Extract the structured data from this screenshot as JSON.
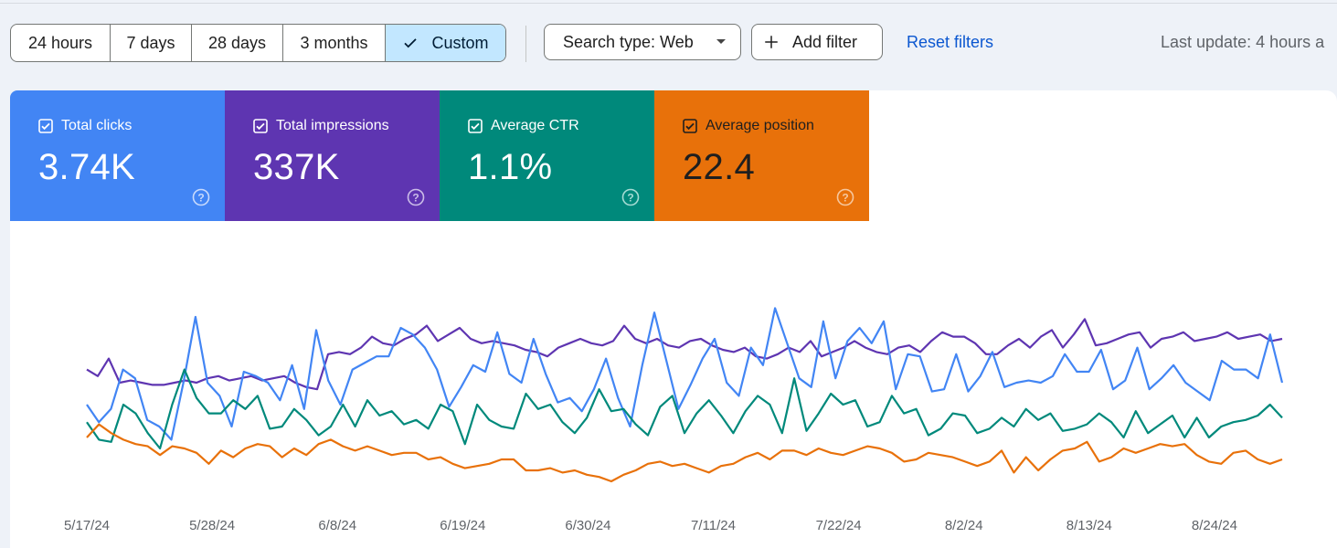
{
  "toolbar": {
    "ranges": [
      "24 hours",
      "7 days",
      "28 days",
      "3 months",
      "Custom"
    ],
    "selected_range": "Custom",
    "search_type_label": "Search type: Web",
    "add_filter_label": "Add filter",
    "reset_filters_label": "Reset filters",
    "last_update": "Last update: 4 hours a"
  },
  "metrics": [
    {
      "label": "Total clicks",
      "value": "3.74K",
      "checked": true,
      "color": "#4285f4"
    },
    {
      "label": "Total impressions",
      "value": "337K",
      "checked": true,
      "color": "#5e35b1"
    },
    {
      "label": "Average CTR",
      "value": "1.1%",
      "checked": true,
      "color": "#00897b"
    },
    {
      "label": "Average position",
      "value": "22.4",
      "checked": true,
      "color": "#e8710a"
    }
  ],
  "icons": {
    "selected": "check-icon",
    "dropdown": "caret-down-icon",
    "add": "plus-icon",
    "metric_checkbox": "checkbox-checked-icon",
    "help": "help-circle-icon"
  },
  "chart_data": {
    "type": "line",
    "x_tick_labels": [
      "5/17/24",
      "5/28/24",
      "6/8/24",
      "6/19/24",
      "6/30/24",
      "7/11/24",
      "7/22/24",
      "8/2/24",
      "8/13/24",
      "8/24/24"
    ],
    "x_start": "5/17/24",
    "x_end": "8/31/24",
    "y_axes_labeled": false,
    "series_note_relative_scale": "values are relative (0-1) because the chart prints no y-axis",
    "series": [
      {
        "metric": "Total impressions",
        "color": "#5e35b1",
        "values": [
          0.56,
          0.53,
          0.61,
          0.5,
          0.51,
          0.5,
          0.49,
          0.49,
          0.5,
          0.51,
          0.5,
          0.52,
          0.53,
          0.51,
          0.52,
          0.53,
          0.51,
          0.52,
          0.53,
          0.5,
          0.48,
          0.47,
          0.63,
          0.64,
          0.63,
          0.66,
          0.71,
          0.68,
          0.67,
          0.7,
          0.72,
          0.76,
          0.69,
          0.72,
          0.75,
          0.7,
          0.68,
          0.69,
          0.68,
          0.67,
          0.65,
          0.64,
          0.62,
          0.66,
          0.68,
          0.7,
          0.68,
          0.67,
          0.69,
          0.76,
          0.7,
          0.68,
          0.7,
          0.67,
          0.66,
          0.69,
          0.7,
          0.67,
          0.65,
          0.64,
          0.66,
          0.62,
          0.61,
          0.63,
          0.66,
          0.64,
          0.69,
          0.62,
          0.64,
          0.66,
          0.69,
          0.66,
          0.64,
          0.63,
          0.66,
          0.67,
          0.64,
          0.69,
          0.73,
          0.71,
          0.71,
          0.68,
          0.63,
          0.63,
          0.67,
          0.7,
          0.66,
          0.71,
          0.74,
          0.66,
          0.72,
          0.79,
          0.67,
          0.68,
          0.7,
          0.72,
          0.73,
          0.66,
          0.7,
          0.71,
          0.73,
          0.69,
          0.7,
          0.71,
          0.73,
          0.7,
          0.71,
          0.72,
          0.69,
          0.7
        ]
      },
      {
        "metric": "Total clicks",
        "color": "#4285f4",
        "values": [
          0.4,
          0.32,
          0.38,
          0.56,
          0.52,
          0.33,
          0.3,
          0.24,
          0.5,
          0.8,
          0.5,
          0.44,
          0.3,
          0.55,
          0.53,
          0.5,
          0.42,
          0.58,
          0.38,
          0.74,
          0.51,
          0.4,
          0.56,
          0.59,
          0.62,
          0.62,
          0.75,
          0.72,
          0.66,
          0.56,
          0.39,
          0.48,
          0.58,
          0.55,
          0.73,
          0.54,
          0.5,
          0.7,
          0.54,
          0.41,
          0.43,
          0.37,
          0.47,
          0.61,
          0.43,
          0.3,
          0.58,
          0.82,
          0.6,
          0.38,
          0.49,
          0.61,
          0.7,
          0.5,
          0.44,
          0.66,
          0.58,
          0.84,
          0.68,
          0.52,
          0.48,
          0.78,
          0.52,
          0.69,
          0.75,
          0.68,
          0.78,
          0.47,
          0.63,
          0.62,
          0.46,
          0.47,
          0.63,
          0.46,
          0.53,
          0.64,
          0.48,
          0.5,
          0.51,
          0.5,
          0.53,
          0.63,
          0.55,
          0.55,
          0.65,
          0.47,
          0.51,
          0.66,
          0.47,
          0.52,
          0.58,
          0.5,
          0.46,
          0.42,
          0.6,
          0.56,
          0.56,
          0.52,
          0.72,
          0.5
        ]
      },
      {
        "metric": "Average CTR",
        "color": "#00897b",
        "values": [
          0.32,
          0.24,
          0.23,
          0.4,
          0.36,
          0.27,
          0.2,
          0.4,
          0.56,
          0.43,
          0.36,
          0.36,
          0.42,
          0.38,
          0.44,
          0.29,
          0.3,
          0.38,
          0.33,
          0.26,
          0.3,
          0.4,
          0.3,
          0.42,
          0.35,
          0.37,
          0.31,
          0.33,
          0.29,
          0.4,
          0.37,
          0.22,
          0.4,
          0.33,
          0.3,
          0.29,
          0.45,
          0.38,
          0.4,
          0.32,
          0.27,
          0.34,
          0.47,
          0.37,
          0.38,
          0.31,
          0.26,
          0.39,
          0.44,
          0.27,
          0.36,
          0.42,
          0.35,
          0.27,
          0.37,
          0.44,
          0.4,
          0.27,
          0.52,
          0.28,
          0.36,
          0.45,
          0.4,
          0.42,
          0.3,
          0.32,
          0.44,
          0.36,
          0.38,
          0.26,
          0.29,
          0.36,
          0.35,
          0.27,
          0.29,
          0.34,
          0.3,
          0.38,
          0.33,
          0.36,
          0.28,
          0.29,
          0.31,
          0.36,
          0.32,
          0.25,
          0.37,
          0.27,
          0.31,
          0.35,
          0.25,
          0.34,
          0.25,
          0.3,
          0.32,
          0.33,
          0.35,
          0.4,
          0.34
        ]
      },
      {
        "metric": "Average position",
        "color": "#e8710a",
        "values": [
          0.25,
          0.31,
          0.27,
          0.24,
          0.22,
          0.21,
          0.17,
          0.21,
          0.2,
          0.18,
          0.13,
          0.19,
          0.16,
          0.2,
          0.22,
          0.21,
          0.16,
          0.2,
          0.17,
          0.22,
          0.24,
          0.21,
          0.19,
          0.21,
          0.19,
          0.17,
          0.18,
          0.18,
          0.15,
          0.16,
          0.13,
          0.11,
          0.12,
          0.13,
          0.15,
          0.15,
          0.1,
          0.1,
          0.11,
          0.09,
          0.1,
          0.08,
          0.07,
          0.05,
          0.08,
          0.1,
          0.13,
          0.14,
          0.12,
          0.13,
          0.11,
          0.09,
          0.12,
          0.13,
          0.16,
          0.18,
          0.15,
          0.19,
          0.19,
          0.17,
          0.2,
          0.18,
          0.17,
          0.19,
          0.21,
          0.2,
          0.18,
          0.14,
          0.15,
          0.18,
          0.17,
          0.16,
          0.14,
          0.12,
          0.14,
          0.19,
          0.09,
          0.16,
          0.1,
          0.15,
          0.19,
          0.2,
          0.23,
          0.14,
          0.16,
          0.2,
          0.18,
          0.2,
          0.22,
          0.21,
          0.22,
          0.17,
          0.14,
          0.13,
          0.18,
          0.19,
          0.15,
          0.13,
          0.15
        ]
      }
    ]
  }
}
